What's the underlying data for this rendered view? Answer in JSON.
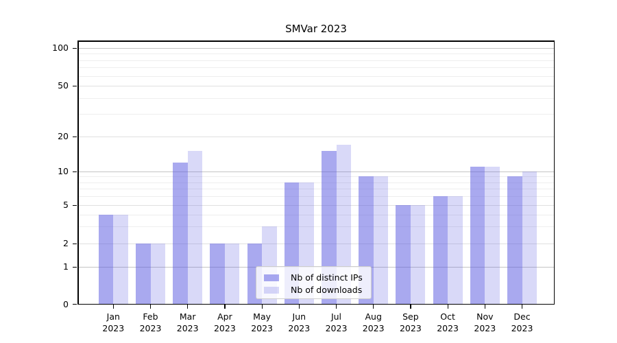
{
  "title": "SMVar 2023",
  "colors": {
    "bar_base": "#5353df",
    "series_dark_rgba": "rgba(83,83,223,0.5)",
    "series_light_rgba": "rgba(83,83,223,0.22)",
    "grid_decade": "#c4c4c4",
    "grid_labeled": "#e0e0e0",
    "grid_minor": "#eeeeee",
    "legend_border": "#cccccc"
  },
  "chart_data": {
    "type": "bar",
    "title": "SMVar 2023",
    "categories": [
      "Jan 2023",
      "Feb 2023",
      "Mar 2023",
      "Apr 2023",
      "May 2023",
      "Jun 2023",
      "Jul 2023",
      "Aug 2023",
      "Sep 2023",
      "Oct 2023",
      "Nov 2023",
      "Dec 2023"
    ],
    "series": [
      {
        "name": "Nb of distinct IPs",
        "color": "rgba(83,83,223,0.5)",
        "values": [
          4,
          2,
          12,
          2,
          2,
          8,
          15,
          9,
          5,
          6,
          11,
          9
        ]
      },
      {
        "name": "Nb of downloads",
        "color": "rgba(83,83,223,0.22)",
        "values": [
          4,
          2,
          15,
          2,
          3,
          8,
          17,
          9,
          5,
          6,
          11,
          10
        ]
      }
    ],
    "xlabel": "",
    "ylabel": "",
    "yscale": "symlog",
    "y_ticks": [
      0,
      1,
      2,
      5,
      10,
      20,
      50,
      100
    ],
    "y_tick_labels": [
      "0",
      "1",
      "2",
      "5",
      "10",
      "20",
      "50",
      "100"
    ],
    "y_minor_ticks": [
      3,
      4,
      6,
      7,
      8,
      9,
      30,
      40,
      60,
      70,
      80,
      90
    ],
    "ylim": [
      0,
      115
    ],
    "grid": true,
    "legend_position": "lower center"
  }
}
